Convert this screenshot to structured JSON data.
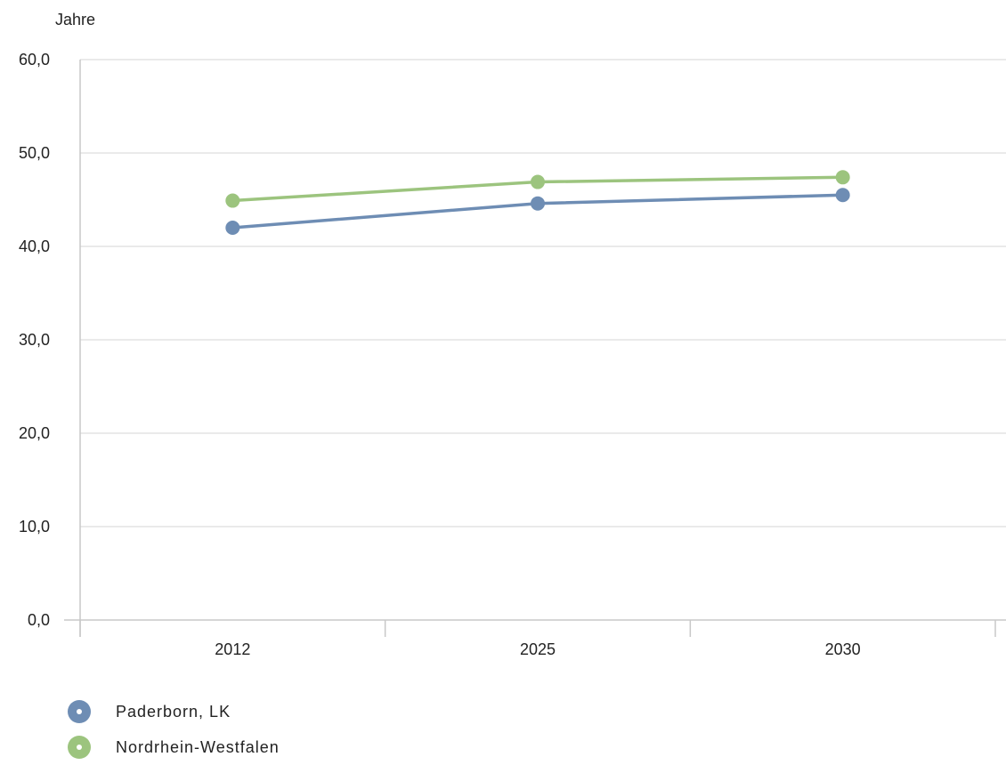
{
  "chart_data": {
    "type": "line",
    "ylabel": "Jahre",
    "categories": [
      "2012",
      "2025",
      "2030"
    ],
    "ylim": [
      0,
      60
    ],
    "yticks": [
      "0,0",
      "10,0",
      "20,0",
      "30,0",
      "40,0",
      "50,0",
      "60,0"
    ],
    "grid": true,
    "legend_position": "bottom-left",
    "series": [
      {
        "name": "Paderborn, LK",
        "color": "#6e8db4",
        "values": [
          42.0,
          44.6,
          45.5
        ]
      },
      {
        "name": "Nordrhein-Westfalen",
        "color": "#9cc47e",
        "values": [
          44.9,
          46.9,
          47.4
        ]
      }
    ]
  }
}
